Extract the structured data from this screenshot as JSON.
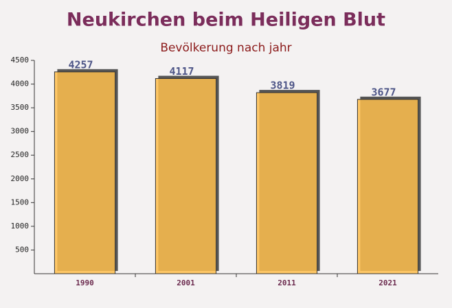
{
  "chart_data": {
    "type": "bar",
    "title": "Neukirchen beim Heiligen Blut",
    "subtitle": "Bevölkerung nach jahr",
    "categories": [
      "1990",
      "2001",
      "2011",
      "2021"
    ],
    "values": [
      4257,
      4117,
      3819,
      3677
    ],
    "color": "#ffc04d",
    "ylim": [
      0,
      4500
    ],
    "yticks": [
      500,
      1000,
      1500,
      2000,
      2500,
      3000,
      3500,
      4000,
      4500
    ],
    "grid": false
  }
}
